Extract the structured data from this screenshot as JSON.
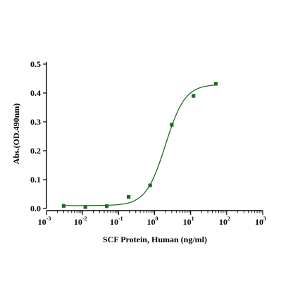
{
  "chart_data": {
    "type": "scatter",
    "title": "",
    "xlabel": "SCF Protein, Human  (ng/ml)",
    "ylabel": "Abs.(OD.490nm)",
    "x_scale": "log",
    "xlim": [
      0.001,
      1000
    ],
    "ylim": [
      0,
      0.5
    ],
    "x_ticks": [
      {
        "base": "10",
        "exp": "-3"
      },
      {
        "base": "10",
        "exp": "-2"
      },
      {
        "base": "10",
        "exp": "-1"
      },
      {
        "base": "10",
        "exp": "0"
      },
      {
        "base": "10",
        "exp": "1"
      },
      {
        "base": "10",
        "exp": "2"
      },
      {
        "base": "10",
        "exp": "3"
      }
    ],
    "y_ticks": [
      "0.0",
      "0.1",
      "0.2",
      "0.3",
      "0.4",
      "0.5"
    ],
    "grid": false,
    "series": [
      {
        "color": "#1e6b1e",
        "x": [
          0.003,
          0.012,
          0.047,
          0.19,
          0.75,
          3,
          12,
          50
        ],
        "y": [
          0.009,
          0.005,
          0.008,
          0.04,
          0.08,
          0.29,
          0.39,
          0.432
        ]
      }
    ],
    "fit": {
      "model": "4PL",
      "bottom": 0.01,
      "top": 0.43,
      "ec50": 2.0,
      "hill": 1.6,
      "color": "#1e6b1e"
    }
  }
}
